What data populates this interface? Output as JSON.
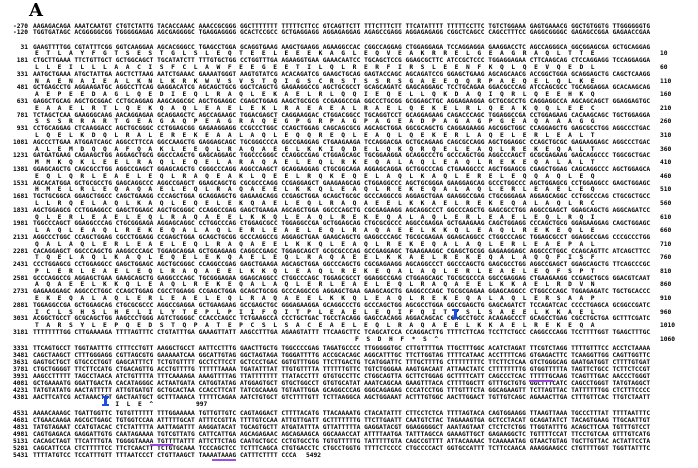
{
  "figure_label": "A",
  "upstream_rows": [
    {
      "num": "-270",
      "seq": "AAGAGACAGA AAATCAATGT CTGTCTATTG TACACCAAAC AAACCGCGGG GGCTTTTTTT TTTTTCTTCC GTCAGTTCTT TTTCTTTCTT TTCATATTTT TTTTTCCTTC TGTCTGGAAA GAGTGAAACG GGCTGTGGTG TTGGGGGGTG"
    },
    {
      "num": "-120",
      "seq": "TGGTGATAGC ACGGGGGCGG TGGGGGAGAG AGCGAGGGGC TGAGGAGGGG GCACTCCGCC GCTGAGGAGG AGGAGAGGAG AGAGCCGAGG AGGAGAGAGG CGGCTCAGCC CAGCCTTTCC GAGGCGGGGC GAGAGCCGGA GAGAACCGAA"
    }
  ],
  "coding_rows": [
    {
      "num": "31",
      "seq": "GAAGTTTTGG CGTATTTCGG GGTCAAGGAA AGCACGGGCC TGAGCCTGGA GCAGGTGAAG AAGCTGAAGG AGAAGGCCAC CGGCCAGGAG CTGGAGGAGA TCCAGGAGGA GAAGGACCTC AGCCAGGGCA GGCGGAGCGA GCTGCAGGAG",
      "prot": "ETLAYFGTSESTGLSLEQTEELEEEKAGLEQVEAKRRELGEAGRAQLTTE",
      "rnum": "10"
    },
    {
      "num": "181",
      "seq": "CTGCTTGAAA TTCTGTTGCT GCTGGCAGCT TGCATATCTT TTTGTGCTGG CCTGGTTTGA AGAAGGTGAA GAAACAATCC TGCAGCTCCG GGAGCGCTTC ATCCGCTCCC TGGAGGAGAA CTTCAAGCAG CTCCAGGAGG TCCAGGAGGA",
      "prot": "LLEILLLAACISFCLAWFEEGEETILQLRERFIRSLEENFKQLQEVQEDL",
      "rnum": "60"
    },
    {
      "num": "331",
      "seq": "AATGCTGAAA ATGCTATTGA AGCTCTTAAG AATCTGAAAC GAAAATGGGT AAGTGTATCG ACACAGATCG GAAGCTGCAG GAGTACCAGC AGCAGATCCG GGAGCTGAAG AGCAGCAACG ACCGGCTGGA GCAGGAGCTG CAGCTCAAGG",
      "prot": "NAENAIEALKNLKRKWVSVSTQIGSCRSTSSRSGAEEQQRPAEQELQLKE",
      "rnum": "110"
    },
    {
      "num": "481",
      "seq": "GCTGAGCCTG AGGAAGATGC AGGCCTTCAG GAGGACATCG AGCAGCTGCG GGCTCAGCTG GAGAAGGCCG AGCTGCGCCT GCAGCAGATC GAGCAGGAGC TCCTGCAGAA GGACGCCCAG ATCCAGCGCC TGCAGGAGGA GCACAAGCAG",
      "prot": "AEPEEDAGLQEDIEQLRAQLEKAELRLQQIEQELLQKDAQIQRLQEEHKQ",
      "rnum": "160"
    },
    {
      "num": "631",
      "seq": "GAGGCTGCAG AGCTGCGGAC CCTGCAGGAG AAGCAGGCGC AGCTGGAGGC CGAGCTGGAG AAGCTGCGCG CCGAGGCCGA GGCCCTGCGG GCGGAGCTGC AGGAGAAGGA GCTGCGCCTG CAGGAGGCCA AGCAGCAGCT GGAGGAGTGC",
      "prot": "EAAELRTLQEKQAQLEAELEKLRAEAEALRAELQEKELRLQEAKQQLEEC",
      "rnum": "210"
    },
    {
      "num": "781",
      "seq": "TCTAGCTCAA GAAGGGCAAG AACAGGAGAA GCAGGAGCTC AGCCAGAAGC TGGACGAGCT CAGGAAGGAC CTGGACGGCC TGCAGGTCCT GCAGGAGAAG CAGACCCAGC TGGAGGCCGA CCTGGAGAAG CACAAGCAGC TGCTGGAGGA",
      "prot": "SSSRRARTGEAGAQPEAGRAQEGPGRPAGPAGEADPAGAGPGEAQAAAGG",
      "rnum": "260"
    },
    {
      "num": "931",
      "seq": "CCTGCAGGAG CTCAAGGACC AGCTGCGGGC CCTGGAGCGG GAGAAGGAGG CCGCCCTGGC CCAGCTGGAG CAGCAGCGCG AGCAGCTGGA GGCGCAGCTG CAGGAGAAGG AGCGGCTGGC CCAGGAGCTG GAGCGCCTGG AGGCCCTGAC",
      "prot": "LQELKDQLRALEREKEAALAQLEQQREQLEAQLQEKERLAQELERLEALT",
      "rnum": "310"
    },
    {
      "num": "1081",
      "seq": "AGCCCTTGAA ATGGATCAGC AGGCCTTCCA GGCCAAGCTG GAGGAGCAGC TGCGGGCCCA GGCCGAGGAG CTGAAGAAGA TCCAGGACGA GCTGCAGAAG CAGCGCCAGG AGCTGGAGGC CCAGCTGCGC GAGAAGGAGC AGGCCCTGAC",
      "prot": "ALEMDQQAFQAKLEEQLRAQAEELKKIQDELQKQRQELEAQLREKEQALT",
      "rnum": "360"
    },
    {
      "num": "1231",
      "seq": "GATGATGAAG CAGAAGCTGG AGGAGCTGCG GGCCCAGCTG GAGCAGGAGC TGGCCCGGGC CCAGGCCGAG CTGGAGCAGC TGCGGAAGGA GCAGGCCCTG GCCCAGCTGG AGGCCCAGCT GCGCGAGAAG GAGCAGGCCC TGGCGCTGAC",
      "prot": "MMKQKLEELRAQLEQELARAQAELEQLRKEQALAQLEAQLREKEQALALT",
      "rnum": "410"
    },
    {
      "num": "1381",
      "seq": "GGAGCAGCTG CAGCGCCTGG AGGCCGAGCT GGAGCAGCTG CGGGCCCAGG AGGCCAAGCT GCAGGAGGAG CTGCGGCAGA AGGAGCAGGA GCTGGCCCAG CTGAAGGCCC AGCTGGAGCG CGAGCTGGAG CAGCAGGCCC AGCTGGAGCA",
      "prot": "EQLQRLEAELEQLRAQEAKLQEELRQKEQELAQLKAQLERELEQQAQLEQ",
      "rnum": "460"
    },
    {
      "num": "1531",
      "seq": "AGCACATGGA GCTGCGCCTG GAGCAGGCCC AGGCCGAGCT GGAGCAGCTG CGCGCCCAGG CCGAGGAGCT GAAGAAGCAG CTGGAGGCCC AGCTGCGGGA GAAGGAGCAG GCCCTGGCCC AGCTGGAGCG CCTGGAGGCC GAGCTGGAGC",
      "prot": "HMELRLEQAQAELEQLRAQAEELKKQLEAQLREKEQALAQLERLEAELEQ",
      "rnum": "510"
    },
    {
      "num": "1681",
      "seq": "TGCTGCGGCA GGAGCTGGCC CAGCTGAAGG CCCAGCTGGA GCAGGAGCTG GAGAAGCAGG CCGAGCTGGA GCAGCTGCGC GCCCAGGCCG AGGAGCTGAA GAAGGCCGAG CTGCGGGAGA AGGAGCAGGC CCTGGCCCAG CTGCGCTGCC",
      "prot": "LLRQELAQLKAQLEQELEKQAELEQLRAQAEELKKAELREKEQALAQLRC",
      "rnum": "560"
    },
    {
      "num": "1831",
      "seq": "AGCTGGAGCG CCTGGAGGCC GAGCTGGAGC AGCTGCGGGC CCAGGCCGAG GAGCTGAAGA AGCAGCTGGA GGCCCAGCTG CGCGAGAAGG AGCAGGCCCT GGCCCAGCTG GAGCGCCTGG AGGCCGAGCT GGAGCAGCTG AGGCAGATCC",
      "prot": "QLERLEAELEQLRAQAEELKKQLEAQLREKEQALAQLERLEAELEQLRQI",
      "rnum": "610"
    },
    {
      "num": "1981",
      "seq": "TGGCCCAGCT GGAGGCCCAG CTGCGGGAGA AGGAGCAGGC CCTGGCCCAG CTGGAGCGCC TGGAGGCCGA GCTGGAGCAG CTGCGCGCCC AGGCCGAGGA GCTGAAGAAG CAGCTGGAGG CCCAGCTGCG GGAGAAGGAG CAGCTGGAGC",
      "prot": "LAQLEAQLREKEQALAQLERLEAELEQLRAQAEELKKQLEAQLREKEQLE",
      "rnum": "660"
    },
    {
      "num": "2131",
      "seq": "AGGCCCTGGC CCAGCTGGAG CGCCTGGAGG CCGAGCTGGA GCAGCTGCGG GCCCAGGCCG AGGAGCTGAA GAAGCAGCTG GAGGCCCAGC TGCGCGAGAA GGAGCAGGCC CTGGCCCAGC TGGAGCGCCT GGAGGCCGAG CCCGCCCTGG",
      "prot": "QALAQLERLEAELEQLRAQAEELKKQLEAQLREKEQALAQLERLEAEPAL",
      "rnum": "710"
    },
    {
      "num": "2281",
      "seq": "CACAGGAGCT GGCCCAGCTG AAGGCCCAGC TGGAGCAGGA GCTGGAGAAG CAGGCCGAGC TGGAGCAGCT GCGCGCCCAG GCCGAGGAGC TGAAGAAGGC CGAGCTGCGG GAGAAGGAGC AGGCCCTGGC CCAGCAGTTC ATCAGCTTCC",
      "prot": "TQELAQLKAQLEQELEKQAELEQLRAQAEELKKAELREKEQALAQQFISF",
      "rnum": "760"
    },
    {
      "num": "2431",
      "seq": "CCCTGGAGCG CCTGGAGGCC GAGCTGGAGC AGCTGCGGGC CCAGGCCGAG GAGCTGAAGA AGCAGCTGGA GGCCCAGCTG CGCGAGAAGG AGCAGGCCCT GGCCCAGCTG GAGCGCCTGG AGGCCGAGCT GGAGCAGCTG TTCAGCCCGC",
      "prot": "PLERLEAELEQLRAQAEELKKQLEAQLREKEQALAQLERLEAELEQFSPT",
      "rnum": "810"
    },
    {
      "num": "2581",
      "seq": "GCCCAGGCCG AGGAGCTGAA GAAGCAGCTG GAGGCCCAGC TGCGGGAGAA GGAGCAGGCC CTGGCCCAGC TGGAGCGCCT GGAGGCCGAG CTGGAGCAGC TGCGCGCCCA GGCCGAGGAG CTGAAGAAGG CCGAGCTGCG GGACGTCAAT",
      "prot": "AQAEELKKQLEAQLREKEQALAQLERLEAELEQLRAQAEELKKAELRDVN",
      "rnum": "860"
    },
    {
      "num": "2731",
      "seq": "GAGAAGGAGC AGGCCCTGGC CCAGCTGGAG CGCCTGGAGG CCGAGCTGGA GCAGCTGCGG GCCCAGGCCG AGGAGCTGAA GAAGCAGCTG GAGGCCCAGC TGCGCGAGAA GGAGCAGGCC CTGGCCCAGC TGGAGAGATC TGCTGCACCC",
      "prot": "EKEQALAQLERLEAELEQLRAQAEELKKQLEAQLREKEQALAQLERSAAP",
      "rnum": "910"
    },
    {
      "num": "2881",
      "seq": "TGGAGGCCGA GCTGGAGCAG CTGCGCGCCC AGGCCGAGGA GCTGAAGAAG GCCGAGCTGC GGGAGAAGGA GCAGGCCCTG GCCCAGCTGG AGCGCCTGGA GGCCGAGCTG GAGCAGATCT TCCAGATCAC CCCCTGAGCA GCGGCCGATC",
      "prot": "ICLSHSLHELILYTEPLPIIFQITPLEAELEQIFQITPSLSAEELKKAEL",
      "rnum": "960"
    },
    {
      "num": "3031",
      "seq": "ACGGCTGCCT GCGCAGCTGG AAGCCCTGGG AGTCTGGGGC CCACCCAGCC TCTGAAGCCA CCCTGCTGAC TGCCTACAGG GAGCCACAGG AGGACAGCAC CCAGCCTGCC ACAGAGCCCT GCAGCCTGAG CGCCTGCTGA GCTTTCGATC",
      "prot": "TARSYLEPQEDSTQPATEPCSLSACEAELEQLRAQAEELKKAELREKEQA",
      "rnum": "1010"
    },
    {
      "num": "3181",
      "seq": "TTTTTTTTGG CTTGAAAAGA TTTTAGTTTC CTGTATTTGA GAAAGTTATT AAGCCTTTGA AGAAGTATTT TTCAAGCTTC TCAGCATCCA CCAGGACTTG TTTTCTTCAG TCCTTCTGCC CAGGCCCAGG TCCTTTTGGT TGAGCTTTGC",
      "prot": "FSDHF*S^",
      "rnum": "1060"
    }
  ],
  "downstream_rows": [
    {
      "num": "3331",
      "seq": "TTCAGTGCCT TGGTAATTTG CTTTCCTGTT AAGGCTGCCT AATTCCTTTG GAACTTGCTG TGGCCCCGAG TAGATGCCCC TTGGGGGTGC CTTGTTTTGA TTGCTTTGGC ACATCTAGAT TTCGTCTAGG TTTTGTTTCC ACCTCTAAAA"
    },
    {
      "num": "3481",
      "seq": "CAGCTAAGCT CTTTGGGAGG CGTTAGCGTG GAAAAATCAA GGCATTGTAG GGCTAGTAGA TGGGATTTTG ACCGCACAGC AGGCATTTGC TTCTTGGTAG TTTTCATAAC ACCTTTTCAG GTGAGACTTC TCAAGGTTGG CAGTTGGTTC"
    },
    {
      "num": "3631",
      "seq": "GAGTGCTGCT GTGCCCTGGT GAGCATTTCT TCTGTGTTTT GCCTCTTCCT GCTCCCTGAC GGTGTTTGGG TTCTTGACTG TCATGGATTC TTTGCTTTTG CTTTTTTTTC TTCTTCTCAA GTCTGGGCAG GAATGATGGT CTTTTGTGAT"
    },
    {
      "num": "3781",
      "seq": "CTGCTGGGGT TTCTTCCATG CTGACAGTTG ACCTGTTTTG TTTTTTAAAA TGATATTTAT TTGTGTTTTA TTTTTTGTTC TGTCTGGGAA AAGTGACAAT ATTAACTATC CTTTTTTTTG GTGGTTTTTA TAGTTCTGCC TCTTCTCCGT"
    },
    {
      "num": "3931",
      "seq": "AAGCCTTTTT TAGCCTAACA ATCTGTTTTA TTTCAAAAGA AAAGTTTTAG TTATTTTTTT TTATACCTTT GTGTGCCTTC CTGGCAGTTA GCTTCTGGAG GCTTTTCATT CAGCCCTCAC TTTTTGCAAG TCAGTTTGAC AACCCTGGGT"
    },
    {
      "num": "4081",
      "seq": "GCTGAAAATG GGATTGACTA CACATAGGGC ACTAATGATA CATGGTATAG ATGGAGTGCT GTGCTGGCCT GTGTGCATAT AAATCAGCAA GAAGTTTACA CTTTTGGCTT GTTTGCTGTG GGCTTTCATC CAGCCTGGGT TATGTAGGCT"
    },
    {
      "num": "4231",
      "seq": "TATGTATATG AACTATTTTT ATTGTGATGT GCTGCACTAA CCACCTTCAT TATCGCAAAG TGTAATTGGA GCAGGCCCAG GGGCAGAGAG CCCATCCTGG TTTGTTTCTA GGCAGAAGTT TCTTAGTTAC TATTTTTTGG CTCTTTCCCC"
    },
    {
      "num": "4381",
      "seq": "AACTTCATCG ACTAAACTGT GACTAATGCT GCTTTAAACA TTTTTCAGAA AATCTGTGCT GTCTTTTGTT TCTTAAGGCA AGCTGGAAAT ACTTTGTGGC AACTTGGACT TGTTGTCAGC AGAAACTTGA CTTTGTTCAC TTGTCTAATT"
    }
  ],
  "stop_protein": {
    "prot": "IILE^",
    "rnum": "997"
  },
  "tail_rows": [
    {
      "num": "4531",
      "seq": "AAAACAAAGC TGATTGGTTC TGTGTTTTTT TTTGGAAAAA TGTTGTTGTC CAGTAGGACT CTTTTACATG TTACAAAATG CTACATATTT CTTCCTCTCA TTTTAGTACA CAGTGGAAGG TTAAGTTAAA TGCCCTTTAT TTTTAATTTC"
    },
    {
      "num": "4681",
      "seq": "CTGAACAAGA AGCGCTGAGC TGTGGTCCAA ATTTTTGCAT ATTTCCGTTA TTTTGTCCAA ATTGTTGATT GCTTTTTTTG TTCTTGAATT CAATGTCTAC TAGAAAGTGA GCTCCTACAT GCAGATATCT TACAGTGAAG TTGCAATTGT"
    },
    {
      "num": "4831",
      "seq": "TATGTAGAAT CCATGTACAC CTCTATTTTA AATTAGATTT AAGGATACAT TGCAGTGCTT ATGATATTTA GTTATTTTTA GAGGATACGT GGAGGGGGCT AAATAGTAAT CTCTCTCTGG TTGGTATTTG ACAGCTTCAA TGTTTGTCCT"
    },
    {
      "num": "4981",
      "seq": "CAGTGAGACA GAGGATTGTG CAATAGAAAA TGTCGTTATG CATTCATTGA AGCAGAGAAC AGCAGAAGCA GGCAAACCAT ATTTTAATGA TATTTAGCCA GAAAGTTGCT GAGAAGGCTC TGTTTTCCAT TTCCTGTCAA GTTTGTCATG"
    },
    {
      "num": "5131",
      "seq": "CACAGCTAGT TTCATTTGTA TGGGGTAAAA TGTTTTATTT ATTCTTCTAG CAATGCTGCC CCTGTGCCTG TGTGTTTTTG TATTTTTGTA CAGCCGTTTT ATTACAAAAC TCAAAAATAG GTAACTGTAG TGCTTGTTAC ACTATTCCTA"
    },
    {
      "num": "5281",
      "seq": "CAGCATTCCA CTCTTTTTCC TTCTCAACTT TCTGTGCAAA TCCCAGCTCC TCTTTCAGCA CTGTGACCTC CTGCCTGGTG TTTTCTCCCC CTGCCCCACT GGTGCCATTT TCTTCCAACA AAAGGAAGCC CTGTTTTGGT TGGTTATTTC"
    },
    {
      "num": "5431",
      "seq": "TTTTATGTCC TCCATTTGTT TTTAATCCCT CTGTTAAGCT TAAAATAAAG CATTTCTTTT CCCA",
      "rnum": "5492"
    }
  ],
  "colors": {
    "cursor": "#1a4fe0",
    "underline": "#9b4de0",
    "text": "#000000"
  }
}
